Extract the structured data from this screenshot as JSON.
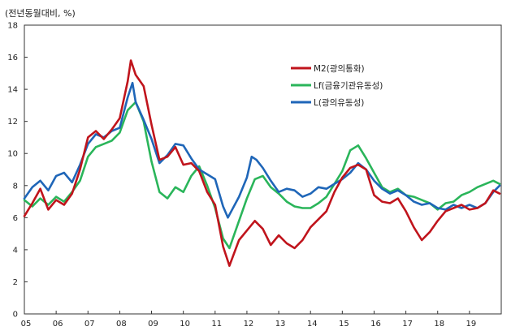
{
  "chart_data": {
    "type": "line",
    "unit_label": "(전년동월대비, %)",
    "ylim": [
      0,
      18
    ],
    "yticks": [
      0,
      2,
      4,
      6,
      8,
      10,
      12,
      14,
      16,
      18
    ],
    "xlim": [
      2005,
      2020
    ],
    "xticks": [
      {
        "label": "05",
        "x": 2005
      },
      {
        "label": "06",
        "x": 2006
      },
      {
        "label": "07",
        "x": 2007
      },
      {
        "label": "08",
        "x": 2008
      },
      {
        "label": "09",
        "x": 2009
      },
      {
        "label": "10",
        "x": 2010
      },
      {
        "label": "11",
        "x": 2011
      },
      {
        "label": "12",
        "x": 2012
      },
      {
        "label": "13",
        "x": 2013
      },
      {
        "label": "14",
        "x": 2014
      },
      {
        "label": "15",
        "x": 2015
      },
      {
        "label": "16",
        "x": 2016
      },
      {
        "label": "17",
        "x": 2017
      },
      {
        "label": "18",
        "x": 2018
      },
      {
        "label": "19",
        "x": 2019
      }
    ],
    "grid": false,
    "legend_position": "top-right",
    "series": [
      {
        "name": "M2(광의통화)",
        "color": "#c0141c",
        "x": [
          2005.0,
          2005.25,
          2005.5,
          2005.75,
          2006.0,
          2006.25,
          2006.5,
          2006.75,
          2007.0,
          2007.25,
          2007.5,
          2007.75,
          2008.0,
          2008.25,
          2008.35,
          2008.5,
          2008.75,
          2009.0,
          2009.25,
          2009.5,
          2009.75,
          2010.0,
          2010.25,
          2010.5,
          2010.75,
          2011.0,
          2011.25,
          2011.45,
          2011.75,
          2012.0,
          2012.25,
          2012.5,
          2012.75,
          2013.0,
          2013.25,
          2013.5,
          2013.75,
          2014.0,
          2014.25,
          2014.5,
          2014.75,
          2015.0,
          2015.25,
          2015.5,
          2015.75,
          2016.0,
          2016.25,
          2016.5,
          2016.75,
          2017.0,
          2017.25,
          2017.5,
          2017.75,
          2018.0,
          2018.25,
          2018.5,
          2018.75,
          2019.0,
          2019.25,
          2019.5,
          2019.75,
          2019.95
        ],
        "values": [
          6.1,
          6.9,
          7.8,
          6.5,
          7.1,
          6.8,
          7.5,
          9.0,
          11.0,
          11.4,
          10.9,
          11.5,
          12.2,
          14.5,
          15.8,
          14.9,
          14.2,
          11.8,
          9.6,
          9.8,
          10.4,
          9.3,
          9.4,
          8.9,
          7.6,
          6.8,
          4.2,
          3.0,
          4.6,
          5.2,
          5.8,
          5.3,
          4.3,
          4.9,
          4.4,
          4.1,
          4.6,
          5.4,
          5.9,
          6.4,
          7.6,
          8.5,
          9.1,
          9.3,
          9.0,
          7.4,
          7.0,
          6.9,
          7.2,
          6.4,
          5.4,
          4.6,
          5.1,
          5.8,
          6.4,
          6.6,
          6.8,
          6.5,
          6.6,
          6.9,
          7.7,
          7.5
        ]
      },
      {
        "name": "Lf(금융기관유동성)",
        "color": "#2ab55a",
        "x": [
          2005.0,
          2005.25,
          2005.5,
          2005.75,
          2006.0,
          2006.25,
          2006.5,
          2006.75,
          2007.0,
          2007.25,
          2007.5,
          2007.75,
          2008.0,
          2008.25,
          2008.5,
          2008.75,
          2009.0,
          2009.25,
          2009.5,
          2009.75,
          2010.0,
          2010.25,
          2010.5,
          2010.75,
          2011.0,
          2011.25,
          2011.45,
          2011.75,
          2012.0,
          2012.25,
          2012.5,
          2012.75,
          2013.0,
          2013.25,
          2013.5,
          2013.75,
          2014.0,
          2014.25,
          2014.5,
          2014.75,
          2015.0,
          2015.25,
          2015.5,
          2015.75,
          2016.0,
          2016.25,
          2016.5,
          2016.75,
          2017.0,
          2017.25,
          2017.5,
          2017.75,
          2018.0,
          2018.25,
          2018.5,
          2018.75,
          2019.0,
          2019.25,
          2019.5,
          2019.75,
          2019.95
        ],
        "values": [
          7.1,
          6.7,
          7.2,
          6.8,
          7.3,
          7.0,
          7.6,
          8.3,
          9.8,
          10.4,
          10.6,
          10.8,
          11.3,
          12.7,
          13.2,
          12.0,
          9.5,
          7.6,
          7.2,
          7.9,
          7.6,
          8.6,
          9.2,
          8.0,
          6.6,
          4.7,
          4.1,
          5.8,
          7.2,
          8.4,
          8.6,
          7.9,
          7.5,
          7.0,
          6.7,
          6.6,
          6.6,
          6.9,
          7.3,
          8.1,
          8.9,
          10.2,
          10.5,
          9.7,
          8.8,
          7.9,
          7.6,
          7.8,
          7.4,
          7.3,
          7.1,
          6.9,
          6.5,
          6.9,
          7.0,
          7.4,
          7.6,
          7.9,
          8.1,
          8.3,
          8.1
        ]
      },
      {
        "name": "L(광의유동성)",
        "color": "#1f66b8",
        "x": [
          2005.0,
          2005.25,
          2005.5,
          2005.75,
          2006.0,
          2006.25,
          2006.5,
          2006.75,
          2007.0,
          2007.25,
          2007.5,
          2007.75,
          2008.0,
          2008.25,
          2008.4,
          2008.5,
          2008.75,
          2009.0,
          2009.25,
          2009.5,
          2009.75,
          2010.0,
          2010.25,
          2010.5,
          2010.75,
          2011.0,
          2011.25,
          2011.4,
          2011.75,
          2012.0,
          2012.15,
          2012.3,
          2012.5,
          2012.75,
          2013.0,
          2013.25,
          2013.5,
          2013.75,
          2014.0,
          2014.25,
          2014.5,
          2014.75,
          2015.0,
          2015.25,
          2015.5,
          2015.75,
          2016.0,
          2016.25,
          2016.5,
          2016.75,
          2017.0,
          2017.25,
          2017.5,
          2017.75,
          2018.0,
          2018.25,
          2018.5,
          2018.75,
          2019.0,
          2019.25,
          2019.5,
          2019.75,
          2019.95
        ],
        "values": [
          7.2,
          7.9,
          8.3,
          7.7,
          8.6,
          8.8,
          8.2,
          9.3,
          10.6,
          11.2,
          11.0,
          11.4,
          11.6,
          13.5,
          14.4,
          13.2,
          12.1,
          10.9,
          9.4,
          9.9,
          10.6,
          10.5,
          9.7,
          9.0,
          8.7,
          8.4,
          6.7,
          6.0,
          7.3,
          8.5,
          9.8,
          9.6,
          9.1,
          8.3,
          7.6,
          7.8,
          7.7,
          7.3,
          7.5,
          7.9,
          7.8,
          8.1,
          8.4,
          8.8,
          9.4,
          9.0,
          8.3,
          7.8,
          7.5,
          7.7,
          7.4,
          7.0,
          6.8,
          6.9,
          6.6,
          6.5,
          6.8,
          6.6,
          6.8,
          6.6,
          6.9,
          7.6,
          8.0
        ]
      }
    ]
  }
}
